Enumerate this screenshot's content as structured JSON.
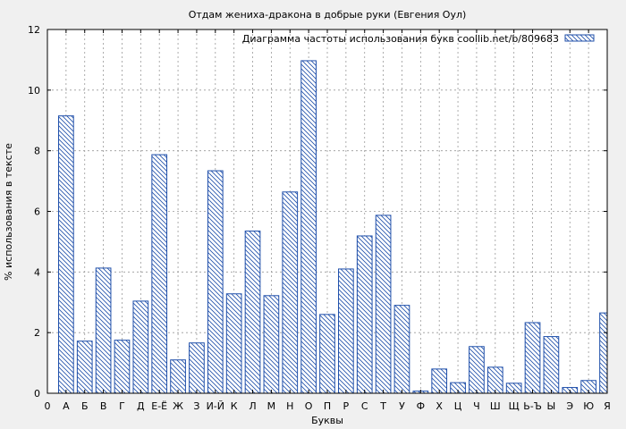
{
  "colors": {
    "background": "#f0f0f0",
    "plot_background": "#ffffff",
    "bar_stroke": "#1f4faa",
    "hatch": "#1f4faa",
    "grid": "#999999",
    "axis": "#000000"
  },
  "chart_data": {
    "type": "bar",
    "title": "Отдам жениха-дракона в добрые руки (Евгения Оул)",
    "xlabel": "Буквы",
    "ylabel": "% использования в тексте",
    "legend": {
      "label": "Диаграмма частоты использования букв coollib.net/b/809683",
      "placement": "top-right"
    },
    "grid": true,
    "fill": "diagonal-hatch",
    "ylim": [
      0,
      12
    ],
    "yticks": [
      0,
      2,
      4,
      6,
      8,
      10,
      12
    ],
    "x_tick_labels": [
      "0",
      "А",
      "Б",
      "В",
      "Г",
      "Д",
      "Е-Ё",
      "Ж",
      "З",
      "И-Й",
      "К",
      "Л",
      "М",
      "Н",
      "О",
      "П",
      "Р",
      "С",
      "Т",
      "У",
      "Ф",
      "Х",
      "Ц",
      "Ч",
      "Ш",
      "Щ",
      "Ь-Ъ",
      "Ы",
      "Э",
      "Ю",
      "Я"
    ],
    "categories": [
      "А",
      "Б",
      "В",
      "Г",
      "Д",
      "Е-Ё",
      "Ж",
      "З",
      "И-Й",
      "К",
      "Л",
      "М",
      "Н",
      "О",
      "П",
      "Р",
      "С",
      "Т",
      "У",
      "Ф",
      "Х",
      "Ц",
      "Ч",
      "Ш",
      "Щ",
      "Ь-Ъ",
      "Ы",
      "Э",
      "Ю",
      "Я"
    ],
    "values": [
      9.15,
      1.72,
      4.13,
      1.75,
      3.04,
      7.87,
      1.1,
      1.66,
      7.34,
      3.28,
      5.35,
      3.22,
      6.64,
      10.97,
      2.6,
      4.1,
      5.19,
      5.87,
      2.9,
      0.07,
      0.8,
      0.35,
      1.54,
      0.86,
      0.33,
      2.33,
      1.87,
      0.19,
      0.42,
      2.65
    ]
  }
}
